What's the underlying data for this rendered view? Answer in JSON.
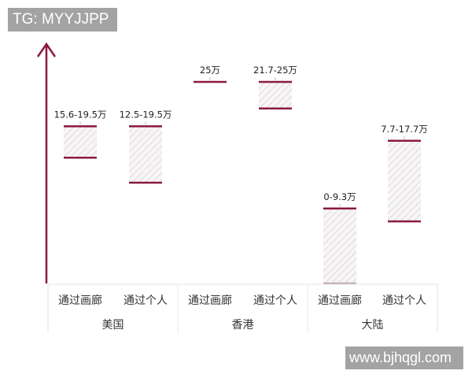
{
  "watermarks": {
    "top_left": "TG: MYYJJPP",
    "bottom_right": "www.bjhqgl.com"
  },
  "chart_data": {
    "type": "floating-bar",
    "title": "",
    "xlabel": "",
    "ylabel": "",
    "unit": "万",
    "ylim": [
      0,
      28
    ],
    "grid": false,
    "groups": [
      {
        "name": "美国",
        "categories": [
          "通过画廊",
          "通过个人"
        ]
      },
      {
        "name": "香港",
        "categories": [
          "通过画廊",
          "通过个人"
        ]
      },
      {
        "name": "大陆",
        "categories": [
          "通过画廊",
          "通过个人"
        ]
      }
    ],
    "bars": [
      {
        "group": "美国",
        "category": "通过画廊",
        "low": 15.6,
        "high": 19.5,
        "label": "15.6-19.5万"
      },
      {
        "group": "美国",
        "category": "通过个人",
        "low": 12.5,
        "high": 19.5,
        "label": "12.5-19.5万"
      },
      {
        "group": "香港",
        "category": "通过画廊",
        "low": 25,
        "high": 25,
        "label": "25万"
      },
      {
        "group": "香港",
        "category": "通过个人",
        "low": 21.7,
        "high": 25,
        "label": "21.7-25万"
      },
      {
        "group": "大陆",
        "category": "通过画廊",
        "low": 0,
        "high": 9.3,
        "label": "0-9.3万"
      },
      {
        "group": "大陆",
        "category": "通过个人",
        "low": 7.7,
        "high": 17.7,
        "label": "7.7-17.7万"
      }
    ],
    "colors": {
      "axis": "#8b1a3f",
      "bar_edge": "#8b1a3f",
      "hatch": "#d8d0d4"
    }
  }
}
